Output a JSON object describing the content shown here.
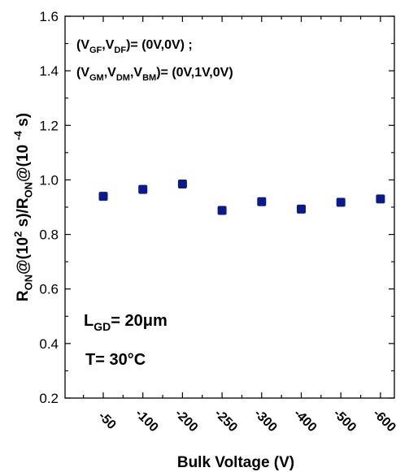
{
  "chart_data": {
    "type": "scatter",
    "title": "",
    "xlabel": "Bulk Voltage (V)",
    "ylabel": {
      "parts": [
        "R",
        "ON",
        "@(10",
        "2",
        " s)/R",
        "ON",
        "@(10 ",
        "-4",
        " s)"
      ]
    },
    "categories": [
      "-50",
      "-100",
      "-200",
      "-250",
      "-300",
      "-400",
      "-500",
      "-600"
    ],
    "values": [
      0.94,
      0.965,
      0.985,
      0.888,
      0.92,
      0.893,
      0.918,
      0.93
    ],
    "ylim": [
      0.2,
      1.6
    ],
    "yticks": [
      "0.2",
      "0.4",
      "0.6",
      "0.8",
      "1.0",
      "1.2",
      "1.4",
      "1.6"
    ],
    "marker_color": "#0a1a8c",
    "grid": false,
    "annotations": {
      "line1": [
        "(V",
        "GF",
        ",V",
        "DF",
        ")= (0V,0V) ;"
      ],
      "line2": [
        "(V",
        "GM",
        ",V",
        "DM",
        ",V",
        "BM",
        ")= (0V,1V,0V)"
      ],
      "lgd": [
        "L",
        "GD",
        "= 20",
        "μ",
        "m"
      ],
      "temp": "T= 30°C"
    }
  }
}
